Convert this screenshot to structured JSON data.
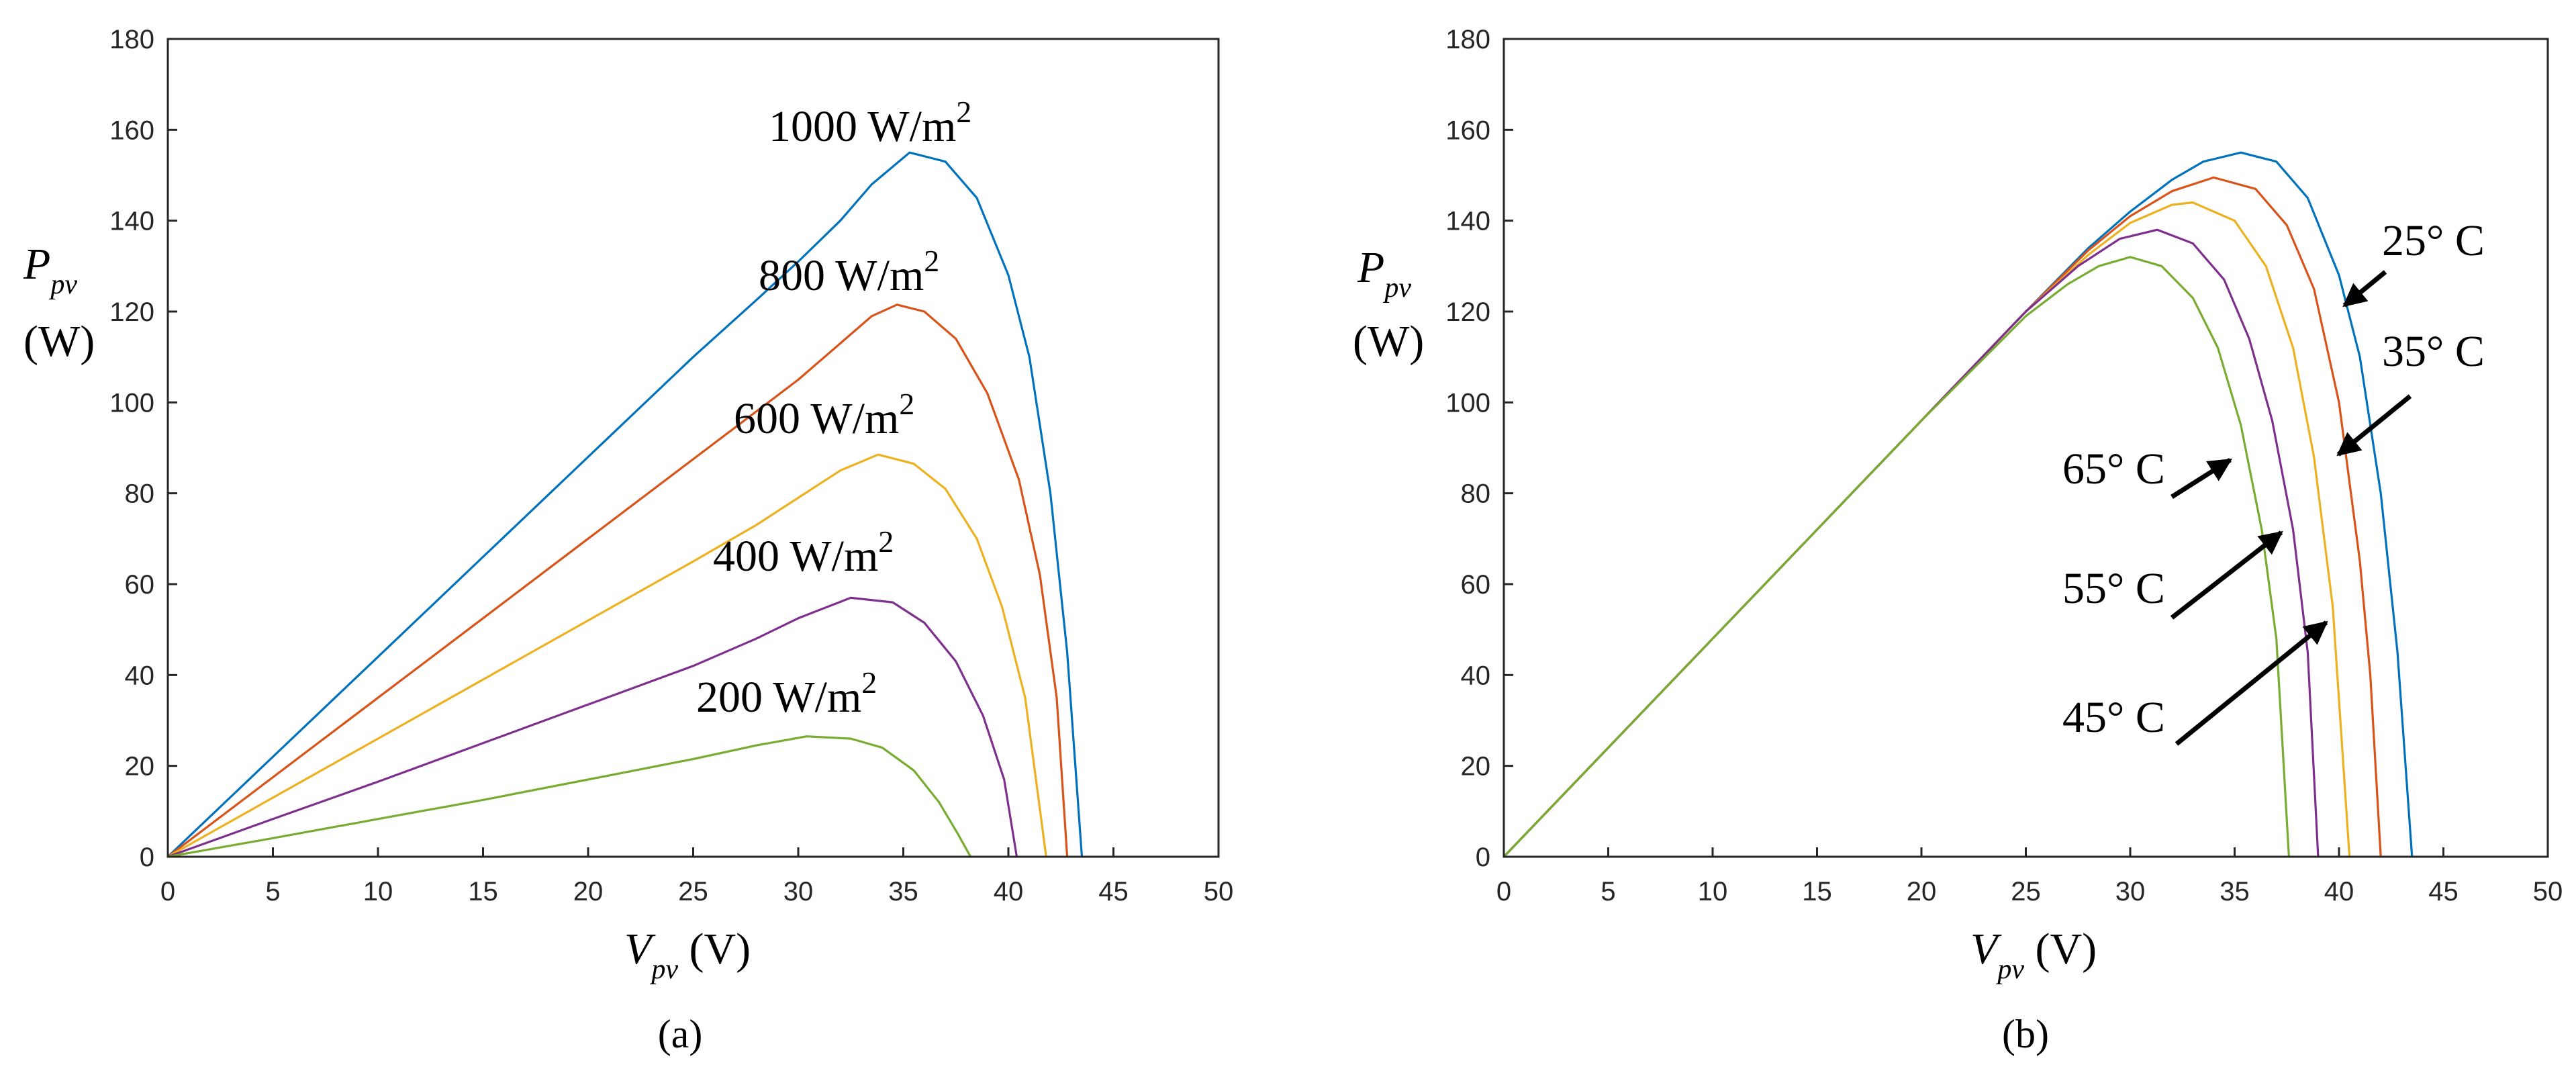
{
  "chart_data": [
    {
      "type": "line",
      "panel_caption": "(a)",
      "xlabel_var": "V",
      "xlabel_sub": "pv",
      "xlabel_unit": " (V)",
      "ylabel_var": "P",
      "ylabel_sub": "pv",
      "ylabel_unit": "(W)",
      "xlim": [
        0,
        50
      ],
      "ylim": [
        0,
        180
      ],
      "xticks": [
        "0",
        "5",
        "10",
        "15",
        "20",
        "25",
        "30",
        "35",
        "40",
        "45",
        "50"
      ],
      "yticks": [
        "0",
        "20",
        "40",
        "60",
        "80",
        "100",
        "120",
        "140",
        "160",
        "180"
      ],
      "series": [
        {
          "name": "1000 W/m2",
          "color": "#0072BD",
          "points": [
            [
              0,
              0
            ],
            [
              5,
              22
            ],
            [
              10,
              44
            ],
            [
              15,
              66
            ],
            [
              20,
              88
            ],
            [
              25,
              110
            ],
            [
              28,
              122.5
            ],
            [
              30,
              131
            ],
            [
              32,
              140
            ],
            [
              33.5,
              148
            ],
            [
              35.3,
              155
            ],
            [
              37,
              153
            ],
            [
              38.5,
              145
            ],
            [
              40,
              128
            ],
            [
              41,
              110
            ],
            [
              42,
              80
            ],
            [
              42.8,
              45
            ],
            [
              43.5,
              0
            ]
          ]
        },
        {
          "name": "800 W/m2",
          "color": "#D95319",
          "points": [
            [
              0,
              0
            ],
            [
              5,
              17.5
            ],
            [
              10,
              35
            ],
            [
              15,
              52.5
            ],
            [
              20,
              70
            ],
            [
              25,
              87.5
            ],
            [
              28,
              98
            ],
            [
              30,
              105
            ],
            [
              32,
              113
            ],
            [
              33.5,
              119
            ],
            [
              34.7,
              121.5
            ],
            [
              36,
              120
            ],
            [
              37.5,
              114
            ],
            [
              39,
              102
            ],
            [
              40.5,
              83
            ],
            [
              41.5,
              62
            ],
            [
              42.3,
              35
            ],
            [
              42.8,
              0
            ]
          ]
        },
        {
          "name": "600 W/m2",
          "color": "#EDB120",
          "points": [
            [
              0,
              0
            ],
            [
              5,
              13
            ],
            [
              10,
              26
            ],
            [
              15,
              39
            ],
            [
              20,
              52
            ],
            [
              25,
              65
            ],
            [
              28,
              73
            ],
            [
              30,
              79
            ],
            [
              32,
              85
            ],
            [
              33.8,
              88.5
            ],
            [
              35.5,
              86.5
            ],
            [
              37,
              81
            ],
            [
              38.5,
              70
            ],
            [
              39.7,
              55
            ],
            [
              40.8,
              35
            ],
            [
              41.8,
              0
            ]
          ]
        },
        {
          "name": "400 W/m2",
          "color": "#7E2F8E",
          "points": [
            [
              0,
              0
            ],
            [
              5,
              8.3
            ],
            [
              10,
              16.5
            ],
            [
              15,
              25
            ],
            [
              20,
              33.5
            ],
            [
              25,
              42
            ],
            [
              28,
              48
            ],
            [
              30,
              52.5
            ],
            [
              32.5,
              57
            ],
            [
              34.5,
              56
            ],
            [
              36,
              51.5
            ],
            [
              37.5,
              43
            ],
            [
              38.8,
              31
            ],
            [
              39.8,
              17
            ],
            [
              40.4,
              0
            ]
          ]
        },
        {
          "name": "200 W/m2",
          "color": "#77AC30",
          "points": [
            [
              0,
              0
            ],
            [
              5,
              4.1
            ],
            [
              10,
              8.3
            ],
            [
              15,
              12.5
            ],
            [
              20,
              17
            ],
            [
              25,
              21.5
            ],
            [
              28,
              24.5
            ],
            [
              30.4,
              26.5
            ],
            [
              32.5,
              26
            ],
            [
              34,
              24
            ],
            [
              35.5,
              19
            ],
            [
              36.7,
              12
            ],
            [
              37.6,
              5
            ],
            [
              38.2,
              0
            ]
          ]
        }
      ],
      "annotations": [
        {
          "text": "1000 W/m",
          "sup": "2"
        },
        {
          "text": "800 W/m",
          "sup": "2"
        },
        {
          "text": "600 W/m",
          "sup": "2"
        },
        {
          "text": "400 W/m",
          "sup": "2"
        },
        {
          "text": "200 W/m",
          "sup": "2"
        }
      ]
    },
    {
      "type": "line",
      "panel_caption": "(b)",
      "xlabel_var": "V",
      "xlabel_sub": "pv",
      "xlabel_unit": " (V)",
      "ylabel_var": "P",
      "ylabel_sub": "pv",
      "ylabel_unit": "(W)",
      "xlim": [
        0,
        50
      ],
      "ylim": [
        0,
        180
      ],
      "xticks": [
        "0",
        "5",
        "10",
        "15",
        "20",
        "25",
        "30",
        "35",
        "40",
        "45",
        "50"
      ],
      "yticks": [
        "0",
        "20",
        "40",
        "60",
        "80",
        "100",
        "120",
        "140",
        "160",
        "180"
      ],
      "series": [
        {
          "name": "25° C",
          "color": "#0072BD",
          "points": [
            [
              0,
              0
            ],
            [
              5,
              24
            ],
            [
              10,
              48
            ],
            [
              15,
              72
            ],
            [
              20,
              96
            ],
            [
              25,
              120
            ],
            [
              28,
              134
            ],
            [
              30,
              142
            ],
            [
              32,
              149
            ],
            [
              33.5,
              153
            ],
            [
              35.3,
              155
            ],
            [
              37,
              153
            ],
            [
              38.5,
              145
            ],
            [
              40,
              128
            ],
            [
              41,
              110
            ],
            [
              42,
              80
            ],
            [
              42.8,
              45
            ],
            [
              43.5,
              0
            ]
          ]
        },
        {
          "name": "35° C",
          "color": "#D95319",
          "points": [
            [
              0,
              0
            ],
            [
              5,
              24
            ],
            [
              10,
              48
            ],
            [
              15,
              72
            ],
            [
              20,
              96
            ],
            [
              25,
              120
            ],
            [
              28,
              133.5
            ],
            [
              30,
              141
            ],
            [
              32,
              146.5
            ],
            [
              34,
              149.5
            ],
            [
              36,
              147
            ],
            [
              37.5,
              139
            ],
            [
              38.8,
              125
            ],
            [
              40,
              100
            ],
            [
              41,
              65
            ],
            [
              41.5,
              40
            ],
            [
              42,
              0
            ]
          ]
        },
        {
          "name": "45° C",
          "color": "#EDB120",
          "points": [
            [
              0,
              0
            ],
            [
              5,
              24
            ],
            [
              10,
              48
            ],
            [
              15,
              72
            ],
            [
              20,
              96
            ],
            [
              25,
              120
            ],
            [
              28,
              132.5
            ],
            [
              30,
              139.5
            ],
            [
              32,
              143.5
            ],
            [
              33,
              144
            ],
            [
              35,
              140
            ],
            [
              36.5,
              130
            ],
            [
              37.8,
              112
            ],
            [
              38.8,
              88
            ],
            [
              39.7,
              55
            ],
            [
              40.5,
              0
            ]
          ]
        },
        {
          "name": "55° C",
          "color": "#7E2F8E",
          "points": [
            [
              0,
              0
            ],
            [
              5,
              24
            ],
            [
              10,
              48
            ],
            [
              15,
              72
            ],
            [
              20,
              96
            ],
            [
              25,
              120
            ],
            [
              27.5,
              130
            ],
            [
              29.5,
              136
            ],
            [
              31.3,
              138
            ],
            [
              33,
              135
            ],
            [
              34.5,
              127
            ],
            [
              35.7,
              114
            ],
            [
              36.8,
              96
            ],
            [
              37.8,
              72
            ],
            [
              38.5,
              45
            ],
            [
              39,
              0
            ]
          ]
        },
        {
          "name": "65° C",
          "color": "#77AC30",
          "points": [
            [
              0,
              0
            ],
            [
              5,
              24
            ],
            [
              10,
              48
            ],
            [
              15,
              72
            ],
            [
              20,
              96
            ],
            [
              25,
              119
            ],
            [
              27,
              126
            ],
            [
              28.5,
              130
            ],
            [
              30,
              132
            ],
            [
              31.5,
              130
            ],
            [
              33,
              123
            ],
            [
              34.2,
              112
            ],
            [
              35.3,
              95
            ],
            [
              36.3,
              72
            ],
            [
              37,
              48
            ],
            [
              37.6,
              0
            ]
          ]
        }
      ],
      "annotations": [
        {
          "text": "25° C"
        },
        {
          "text": "35° C"
        },
        {
          "text": "65° C"
        },
        {
          "text": "55° C"
        },
        {
          "text": "45° C"
        }
      ]
    }
  ]
}
